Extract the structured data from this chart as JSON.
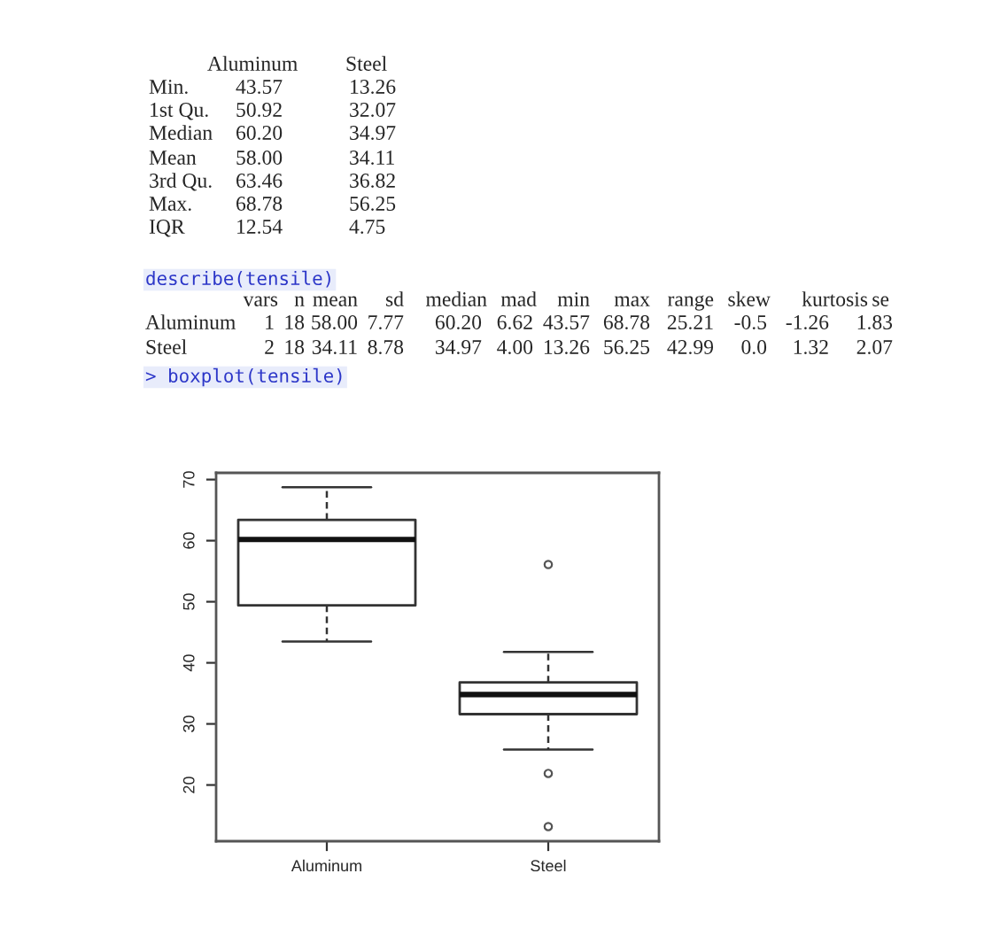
{
  "chart_data": [
    {
      "type": "other",
      "annotations": [
        "\tAluminum\tSteel",
        "Min.\t43.57\t13.26",
        "1st Qu.\t50.92\t32.07",
        "Median\t60.20\t34.97",
        "Mean\t58.00\t34.11",
        "3rd Qu.\t63.46\t36.82",
        "Max.\t68.78\t56.25",
        "IQR\t12.54\t4.75"
      ]
    },
    {
      "type": "other",
      "title": "describe(tensile)",
      "annotations": [
        "\tvars\tn\tmean\tsd\tmedian\tmad\tmin\tmax\trange\tskew\tkurtosis\tse",
        "Aluminum\t1\t18\t58.00\t7.77\t60.20\t6.62\t43.57\t68.78\t25.21\t-0.5\t-1.26\t1.83",
        "Steel\t2\t18\t34.11\t8.78\t34.97\t4.00\t13.26\t56.25\t42.99\t0.0\t1.32\t2.07"
      ]
    },
    {
      "type": "box",
      "title": "> boxplot(tensile)",
      "categories": [
        "Aluminum",
        "Steel"
      ],
      "boxes": [
        {
          "low": 43.5,
          "q1": 49.4,
          "median": 60.2,
          "q3": 63.4,
          "high": 68.75
        },
        {
          "low": 25.8,
          "q1": 31.6,
          "median": 34.8,
          "q3": 36.8,
          "high": 41.8,
          "outliers": [
            56.1,
            21.9,
            13.2
          ]
        }
      ],
      "ylim": [
        10.8,
        71.1
      ],
      "yticks": [
        20,
        30,
        40,
        50,
        60,
        70
      ],
      "grid": false
    }
  ]
}
